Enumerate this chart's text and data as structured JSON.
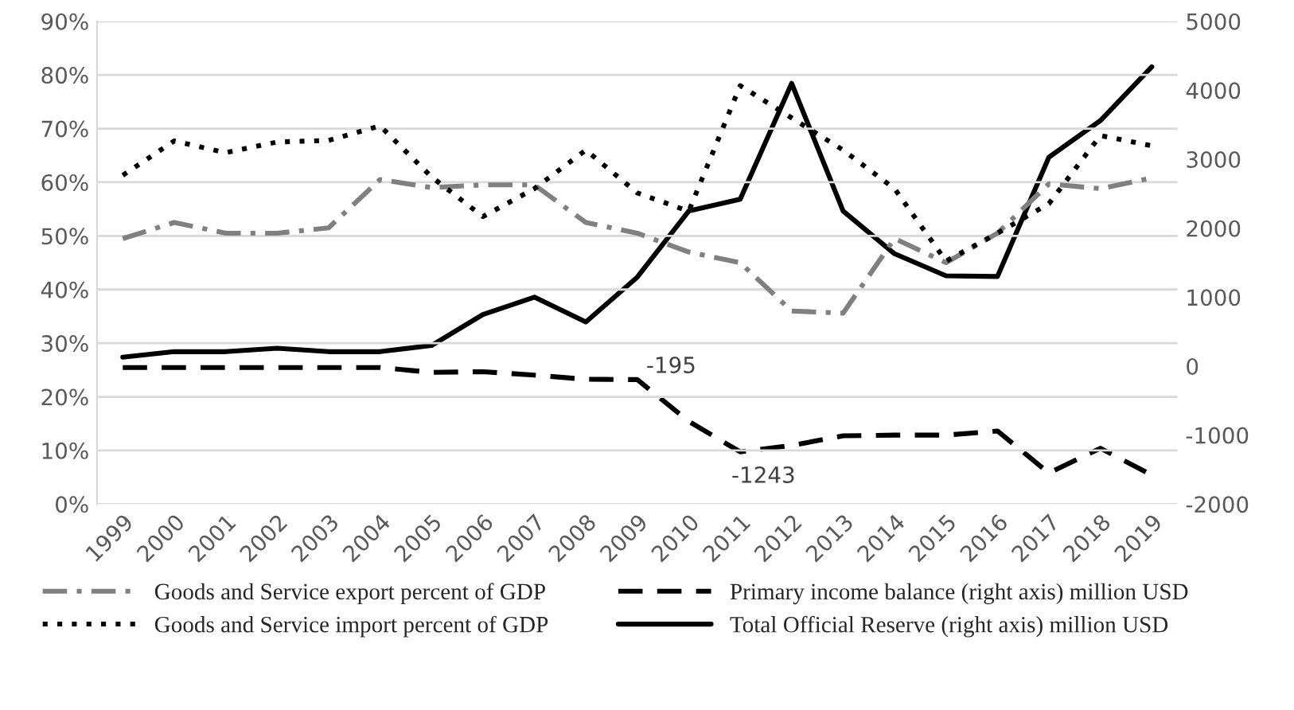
{
  "chart_data": {
    "type": "line",
    "categories": [
      "1999",
      "2000",
      "2001",
      "2002",
      "2003",
      "2004",
      "2005",
      "2006",
      "2007",
      "2008",
      "2009",
      "2010",
      "2011",
      "2012",
      "2013",
      "2014",
      "2015",
      "2016",
      "2017",
      "2018",
      "2019"
    ],
    "series": [
      {
        "name": "Goods and Service export percent of GDP",
        "color": "#808080",
        "line_style": "dashdot",
        "values": [
          49.5,
          52.5,
          50.5,
          50.5,
          51.5,
          60.5,
          59,
          59.5,
          59.5,
          52.5,
          50.5,
          47,
          45,
          36,
          35.6,
          49.5,
          45,
          50.5,
          59.7,
          58.8,
          60.8
        ]
      },
      {
        "name": "Goods and Service import percent of GDP",
        "color": "#000000",
        "line_style": "dotted",
        "values": [
          61.3,
          67.7,
          65.5,
          67.5,
          67.8,
          70.5,
          61,
          53.6,
          58.8,
          66,
          58,
          54.6,
          78,
          72,
          66,
          58.8,
          45.3,
          50.5,
          56,
          68.7,
          66.8
        ]
      },
      {
        "name": "Primary income balance (right axis) million USD",
        "color": "#000000",
        "line_style": "dashed",
        "axis": "y2",
        "value_labels": [
          null,
          null,
          null,
          null,
          null,
          null,
          null,
          null,
          null,
          null,
          "-195",
          null,
          "-1243",
          null,
          null,
          null,
          null,
          null,
          null,
          null,
          null
        ],
        "values": [
          -20,
          -20,
          -20,
          -20,
          -20,
          -20,
          -90,
          -80,
          -130,
          -190,
          -195,
          -800,
          -1243,
          -1150,
          -1010,
          -1000,
          -1000,
          -940,
          -1550,
          -1190,
          -1580
        ]
      },
      {
        "name": "Total Official Reserve (right axis) million USD",
        "color": "#000000",
        "line_style": "solid",
        "axis": "y2",
        "values": [
          130,
          210,
          210,
          260,
          210,
          210,
          300,
          750,
          1000,
          640,
          1290,
          2250,
          2420,
          4100,
          2250,
          1630,
          1310,
          1300,
          3030,
          3560,
          4340
        ]
      }
    ],
    "ylim": [
      0,
      90
    ],
    "yticks": [
      {
        "value": 0,
        "label": "0%"
      },
      {
        "value": 10,
        "label": "10%"
      },
      {
        "value": 20,
        "label": "20%"
      },
      {
        "value": 30,
        "label": "30%"
      },
      {
        "value": 40,
        "label": "40%"
      },
      {
        "value": 50,
        "label": "50%"
      },
      {
        "value": 60,
        "label": "60%"
      },
      {
        "value": 70,
        "label": "70%"
      },
      {
        "value": 80,
        "label": "80%"
      },
      {
        "value": 90,
        "label": "90%"
      }
    ],
    "y2lim": [
      -2000,
      5000
    ],
    "y2ticks": [
      -2000,
      -1000,
      0,
      1000,
      2000,
      3000,
      4000,
      5000
    ],
    "grid": "y",
    "legend": "bottom",
    "marker": "none"
  }
}
